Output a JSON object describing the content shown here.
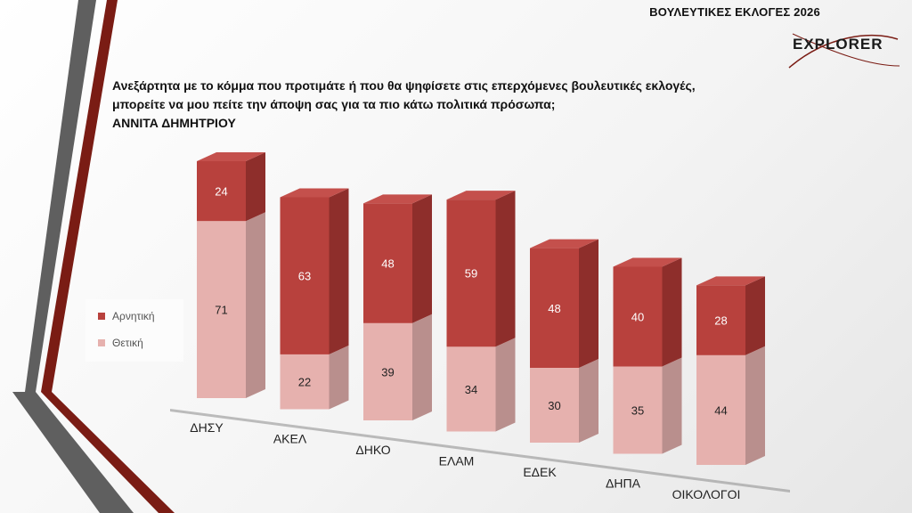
{
  "header": {
    "title": "ΒΟΥΛΕΥΤΙΚΕΣ ΕΚΛΟΓΕΣ 2026",
    "logo_text": "EXPLORER"
  },
  "question": {
    "line1": "Ανεξάρτητα με το κόμμα που προτιμάτε ή που θα ψηφίσετε στις επερχόμενες βουλευτικές εκλογές,",
    "line2": "μπορείτε να μου πείτε την άποψη σας για τα πιο κάτω πολιτικά πρόσωπα;",
    "line3": "ΑΝΝΙΤΑ ΔΗΜΗΤΡΙΟΥ"
  },
  "colors": {
    "negative_front": "#b8413d",
    "negative_side": "#8e2e2b",
    "negative_top": "#c4504c",
    "positive_front": "#e6b1ae",
    "positive_side": "#b98f8d",
    "positive_top": "#efc3c0",
    "deco_gray": "#5f5f5f",
    "deco_red": "#7a1c14"
  },
  "legend": {
    "position": "left",
    "items": [
      {
        "label": "Αρνητική",
        "color": "#b8413d"
      },
      {
        "label": "Θετική",
        "color": "#e6b1ae"
      }
    ]
  },
  "chart_data": {
    "type": "bar",
    "stacked": true,
    "three_d": true,
    "categories": [
      "ΔΗΣΥ",
      "ΑΚΕΛ",
      "ΔΗΚΟ",
      "ΕΛΑΜ",
      "ΕΔΕΚ",
      "ΔΗΠΑ",
      "ΟΙΚΟΛΟΓΟΙ"
    ],
    "series": [
      {
        "name": "Θετική",
        "values": [
          71,
          22,
          39,
          34,
          30,
          35,
          44
        ]
      },
      {
        "name": "Αρνητική",
        "values": [
          24,
          63,
          48,
          59,
          48,
          40,
          28
        ]
      }
    ],
    "data_labels": true,
    "grid": false
  }
}
